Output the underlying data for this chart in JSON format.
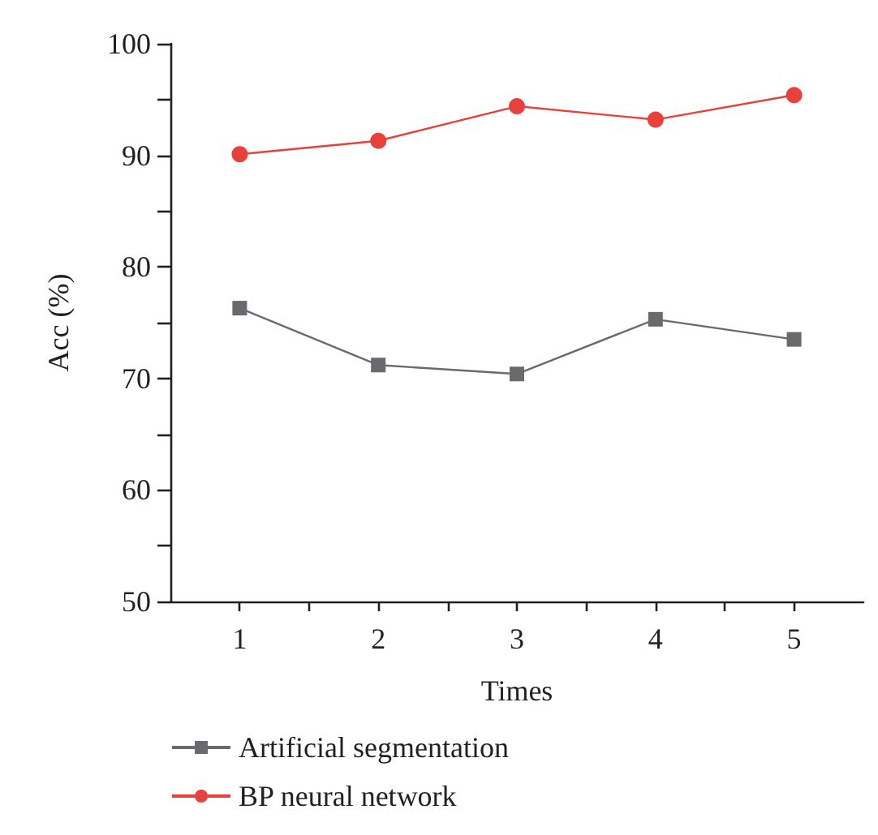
{
  "chart_data": {
    "type": "line",
    "xlabel": "Times",
    "ylabel": "Acc (%)",
    "x": [
      1,
      2,
      3,
      4,
      5
    ],
    "xlim": [
      0.5,
      5.5
    ],
    "xticks": [
      1,
      {
        "value": 1.5,
        "label": null
      },
      2,
      {
        "value": 2.5,
        "label": null
      },
      3,
      {
        "value": 3.5,
        "label": null
      },
      4,
      {
        "value": 4.5,
        "label": null
      },
      5
    ],
    "ylim": [
      50,
      100
    ],
    "yticks": [
      50,
      {
        "value": 55,
        "label": null
      },
      60,
      {
        "value": 65,
        "label": null
      },
      70,
      {
        "value": 75,
        "label": null
      },
      80,
      {
        "value": 85,
        "label": null
      },
      90,
      {
        "value": 95,
        "label": null
      },
      100
    ],
    "series": [
      {
        "name": "Artificial segmentation",
        "color": "#696a6e",
        "marker": "square",
        "values": [
          76.3,
          71.2,
          70.4,
          75.3,
          73.5
        ]
      },
      {
        "name": "BP neural network",
        "color": "#e8403a",
        "marker": "circle",
        "values": [
          90.1,
          91.3,
          94.4,
          93.2,
          95.4
        ]
      }
    ],
    "grid": false,
    "legend": "bottom left",
    "line_style": "solid"
  }
}
